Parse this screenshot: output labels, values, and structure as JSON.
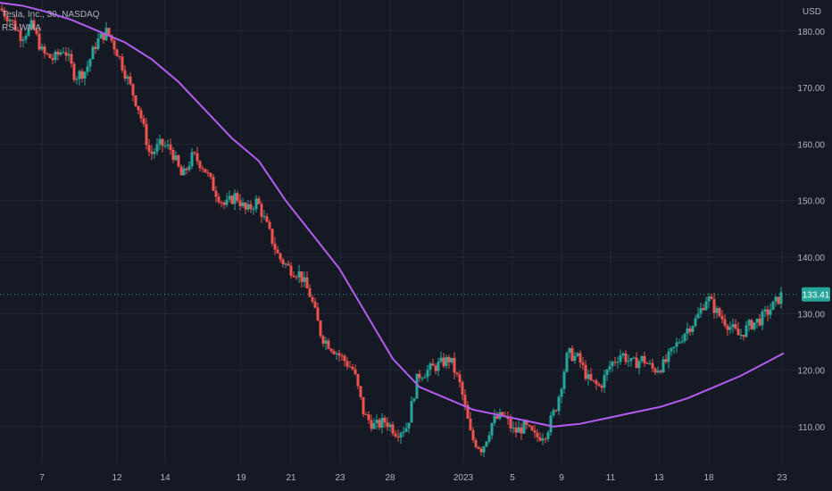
{
  "legend": {
    "title": "Tesla, Inc., 30, NASDAQ",
    "indicator": "RSI WMA"
  },
  "currency": "USD",
  "colors": {
    "background": "#151924",
    "grid": "#232733",
    "up": "#26a69a",
    "down": "#ef5350",
    "wma": "#b35cf0",
    "last_price_bg": "#26a69a",
    "axis_text": "#b2b5be"
  },
  "last_price": "133.41",
  "chart_data": {
    "type": "candlestick",
    "title": "Tesla, Inc., 30, NASDAQ",
    "y_axis": {
      "label": "USD",
      "ticks": [
        "110.00",
        "120.00",
        "130.00",
        "140.00",
        "150.00",
        "160.00",
        "170.00",
        "180.00"
      ],
      "range": [
        103.5,
        185.5
      ]
    },
    "x_axis": {
      "ticks": [
        "7",
        "12",
        "14",
        "19",
        "21",
        "23",
        "28",
        "2023",
        "5",
        "9",
        "11",
        "13",
        "18",
        "23"
      ]
    },
    "grid": true,
    "last_price": 133.41,
    "series": [
      {
        "name": "RSI WMA",
        "type": "line",
        "points": [
          [
            0,
            185
          ],
          [
            25,
            184.5
          ],
          [
            50,
            183.5
          ],
          [
            80,
            182
          ],
          [
            110,
            180
          ],
          [
            140,
            178
          ],
          [
            170,
            175
          ],
          [
            200,
            171
          ],
          [
            230,
            166
          ],
          [
            260,
            161
          ],
          [
            290,
            157
          ],
          [
            320,
            150
          ],
          [
            350,
            144
          ],
          [
            380,
            138
          ],
          [
            410,
            130
          ],
          [
            440,
            122
          ],
          [
            470,
            117
          ],
          [
            500,
            115
          ],
          [
            530,
            113
          ],
          [
            560,
            112
          ],
          [
            590,
            111
          ],
          [
            620,
            110
          ],
          [
            650,
            110.5
          ],
          [
            680,
            111.5
          ],
          [
            710,
            112.5
          ],
          [
            740,
            113.5
          ],
          [
            770,
            115
          ],
          [
            800,
            117
          ],
          [
            830,
            119
          ],
          [
            860,
            121.5
          ],
          [
            878,
            123
          ]
        ]
      },
      {
        "name": "price",
        "type": "candles",
        "points": [
          [
            0,
            184
          ],
          [
            12,
            182
          ],
          [
            24,
            179
          ],
          [
            36,
            181
          ],
          [
            48,
            176
          ],
          [
            60,
            175
          ],
          [
            72,
            177
          ],
          [
            84,
            172
          ],
          [
            96,
            173
          ],
          [
            108,
            178
          ],
          [
            120,
            180
          ],
          [
            132,
            176
          ],
          [
            144,
            171
          ],
          [
            156,
            166
          ],
          [
            168,
            158
          ],
          [
            180,
            160
          ],
          [
            192,
            159
          ],
          [
            204,
            154
          ],
          [
            216,
            158
          ],
          [
            228,
            156
          ],
          [
            240,
            152
          ],
          [
            252,
            149
          ],
          [
            264,
            151
          ],
          [
            276,
            148
          ],
          [
            288,
            150
          ],
          [
            300,
            145
          ],
          [
            312,
            140
          ],
          [
            324,
            138
          ],
          [
            336,
            137
          ],
          [
            348,
            133
          ],
          [
            360,
            126
          ],
          [
            372,
            124
          ],
          [
            384,
            122
          ],
          [
            396,
            120
          ],
          [
            408,
            112
          ],
          [
            420,
            110
          ],
          [
            432,
            111
          ],
          [
            444,
            109
          ],
          [
            456,
            110
          ],
          [
            468,
            119
          ],
          [
            480,
            120
          ],
          [
            492,
            121
          ],
          [
            504,
            122
          ],
          [
            516,
            117
          ],
          [
            528,
            108
          ],
          [
            540,
            106
          ],
          [
            552,
            111
          ],
          [
            564,
            112
          ],
          [
            576,
            109
          ],
          [
            588,
            110
          ],
          [
            600,
            108
          ],
          [
            612,
            109
          ],
          [
            624,
            114
          ],
          [
            636,
            123
          ],
          [
            648,
            122
          ],
          [
            660,
            118
          ],
          [
            672,
            117
          ],
          [
            684,
            121
          ],
          [
            696,
            123
          ],
          [
            708,
            121
          ],
          [
            720,
            122
          ],
          [
            732,
            120
          ],
          [
            744,
            121
          ],
          [
            756,
            124
          ],
          [
            768,
            127
          ],
          [
            780,
            129
          ],
          [
            792,
            133
          ],
          [
            804,
            130
          ],
          [
            816,
            128
          ],
          [
            828,
            126
          ],
          [
            840,
            128
          ],
          [
            852,
            129
          ],
          [
            864,
            131
          ],
          [
            876,
            133.4
          ]
        ]
      }
    ]
  }
}
